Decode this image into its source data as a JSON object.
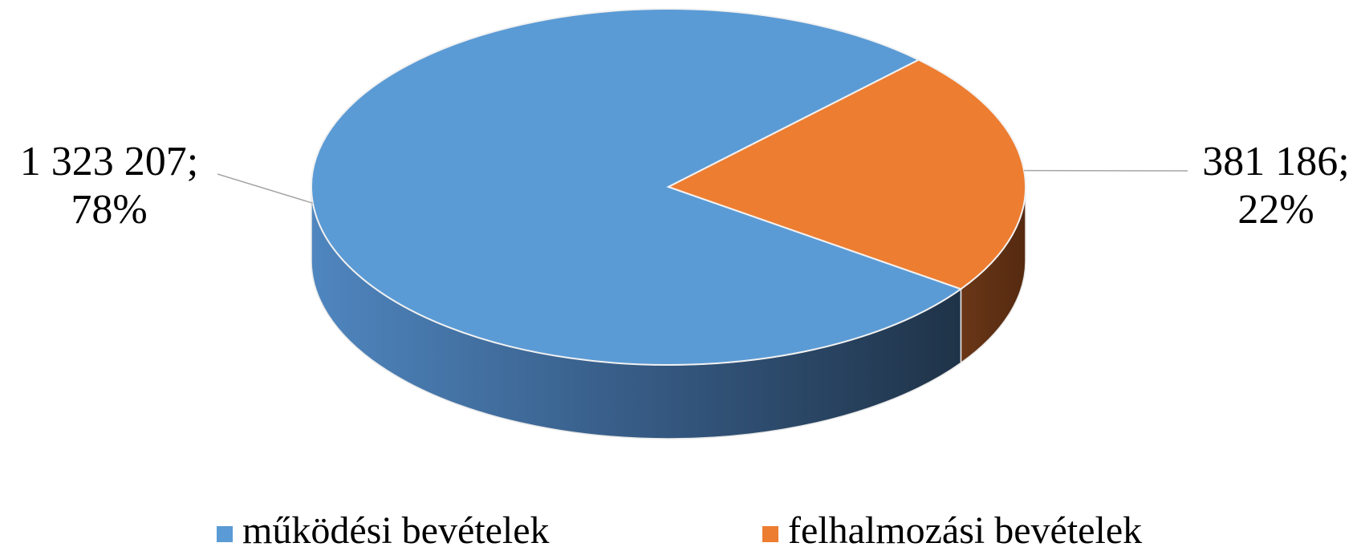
{
  "chart_data": {
    "type": "pie3d",
    "categories": [
      "működési bevételek",
      "felhalmozási bevételek"
    ],
    "values": [
      1323207,
      381186
    ],
    "value_labels": [
      "1 323 207;",
      "381 186;"
    ],
    "percent_labels": [
      "78%",
      "22%"
    ],
    "colors": [
      "#5b9bd5",
      "#ed7d31"
    ],
    "legend": "bottom"
  }
}
